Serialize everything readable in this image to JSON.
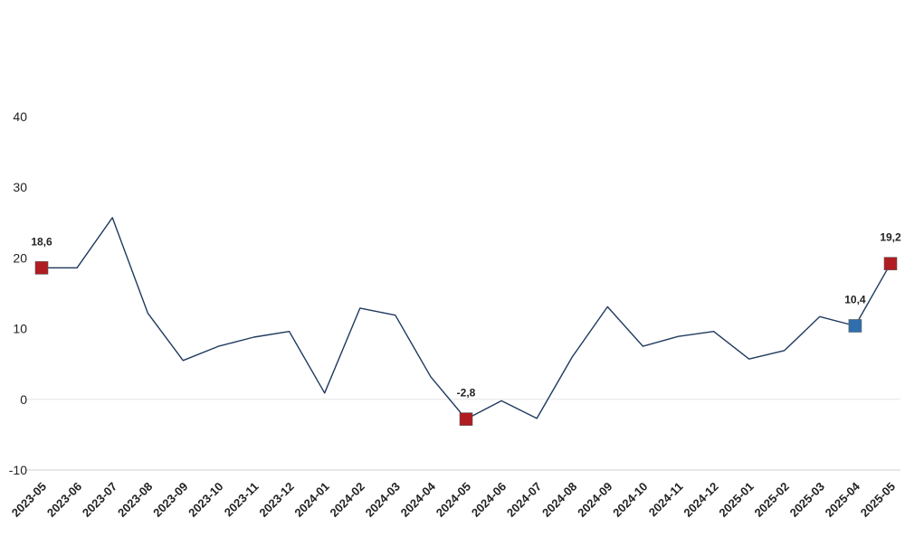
{
  "chart_data": {
    "type": "line",
    "title": "",
    "xlabel": "",
    "ylabel": "",
    "ylim": [
      -10,
      40
    ],
    "yticks": [
      -10,
      0,
      10,
      20,
      30,
      40
    ],
    "grid": false,
    "categories": [
      "2023-05",
      "2023-06",
      "2023-07",
      "2023-08",
      "2023-09",
      "2023-10",
      "2023-11",
      "2023-12",
      "2024-01",
      "2024-02",
      "2024-03",
      "2024-04",
      "2024-05",
      "2024-06",
      "2024-07",
      "2024-08",
      "2024-09",
      "2024-10",
      "2024-11",
      "2024-12",
      "2025-01",
      "2025-02",
      "2025-03",
      "2025-04",
      "2025-05"
    ],
    "series": [
      {
        "values": [
          18.6,
          18.6,
          25.7,
          12.2,
          5.5,
          7.5,
          8.8,
          9.6,
          0.9,
          12.9,
          11.9,
          3.2,
          -2.8,
          -0.2,
          -2.7,
          6.0,
          13.1,
          7.5,
          8.9,
          9.6,
          5.7,
          6.9,
          11.7,
          10.4,
          19.2
        ],
        "color": "#1f3a5f"
      }
    ],
    "markers": [
      {
        "category": "2023-05",
        "value": 18.6,
        "label": "18,6",
        "color": "#b01c22"
      },
      {
        "category": "2024-05",
        "value": -2.8,
        "label": "-2,8",
        "color": "#b01c22"
      },
      {
        "category": "2025-04",
        "value": 10.4,
        "label": "10,4",
        "color": "#2f6fad"
      },
      {
        "category": "2025-05",
        "value": 19.2,
        "label": "19,2",
        "color": "#b01c22"
      }
    ]
  }
}
